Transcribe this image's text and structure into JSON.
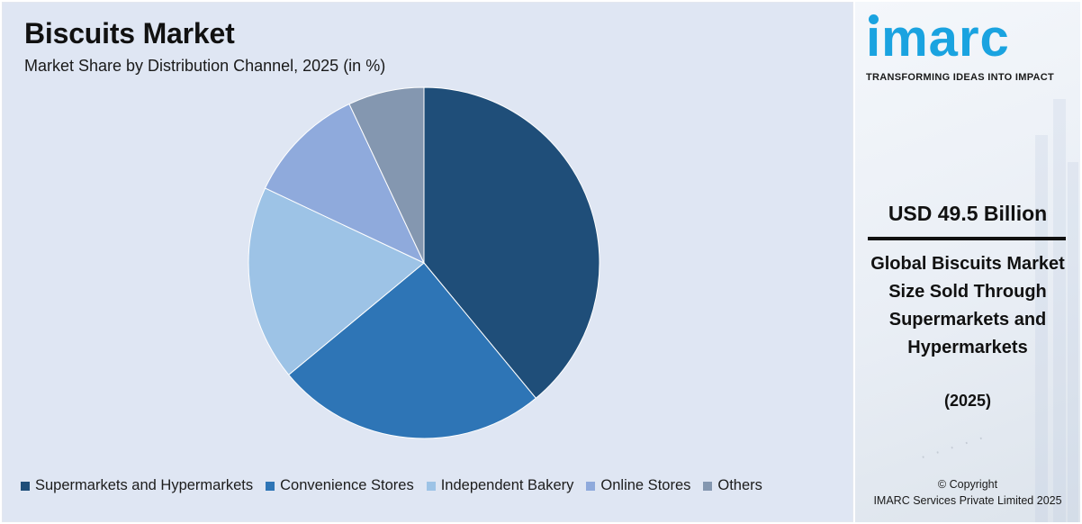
{
  "chart_data": {
    "type": "pie",
    "title": "Biscuits Market",
    "subtitle": "Market Share by Distribution Channel, 2025 (in %)",
    "categories": [
      "Supermarkets and Hypermarkets",
      "Convenience Stores",
      "Independent Bakery",
      "Online Stores",
      "Others"
    ],
    "values": [
      39,
      25,
      18,
      11,
      7
    ],
    "colors": [
      "#1f4e79",
      "#2e75b6",
      "#9dc3e6",
      "#8faadc",
      "#8497b0"
    ],
    "legend_position": "bottom"
  },
  "side_panel": {
    "logo_text": "ımarc",
    "tagline": "TRANSFORMING IDEAS INTO IMPACT",
    "market_value": "USD 49.5 Billion",
    "description": "Global Biscuits Market Size Sold Through Supermarkets and Hypermarkets",
    "year": "(2025)",
    "copyright_line1": "© Copyright",
    "copyright_line2": "IMARC Services Private Limited 2025",
    "brand_color": "#1aa3e0"
  }
}
